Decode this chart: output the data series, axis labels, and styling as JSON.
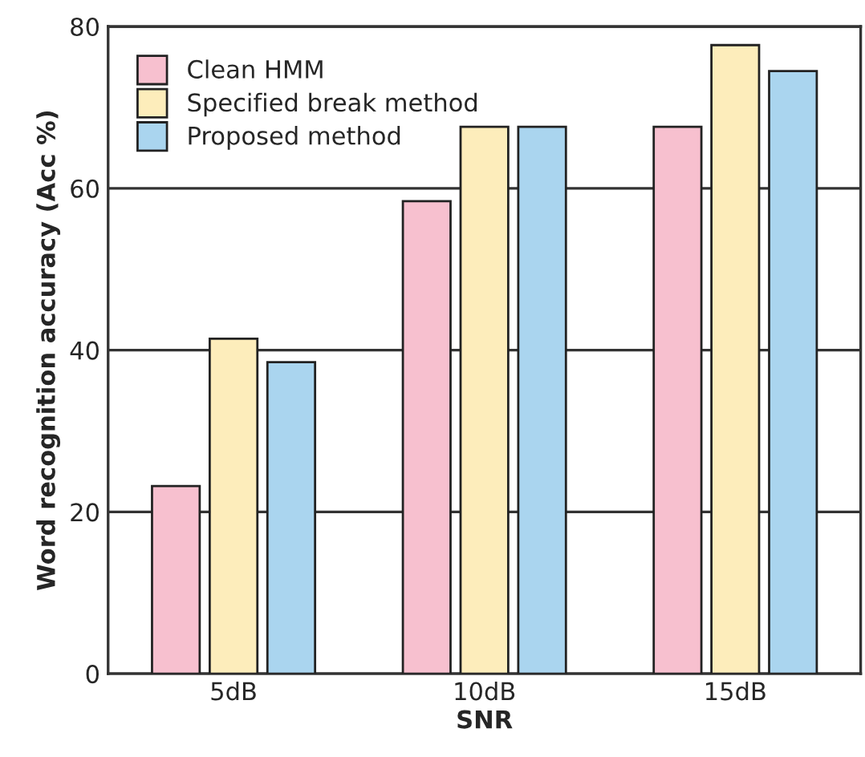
{
  "chart_data": {
    "type": "bar",
    "xlabel": "SNR",
    "ylabel": "Word recognition accuracy (Acc %)",
    "categories": [
      "5dB",
      "10dB",
      "15dB"
    ],
    "series": [
      {
        "name": "Clean HMM",
        "color": "#f7c0cf",
        "values": [
          23.2,
          58.4,
          67.6
        ]
      },
      {
        "name": "Specified break method",
        "color": "#fdedbb",
        "values": [
          41.4,
          67.6,
          77.7
        ]
      },
      {
        "name": "Proposed method",
        "color": "#aad5ef",
        "values": [
          38.5,
          67.6,
          74.5
        ]
      }
    ],
    "ylim": [
      0,
      80
    ],
    "yticks": [
      0,
      20,
      40,
      60,
      80
    ],
    "grid": "y",
    "legend": "top left"
  }
}
